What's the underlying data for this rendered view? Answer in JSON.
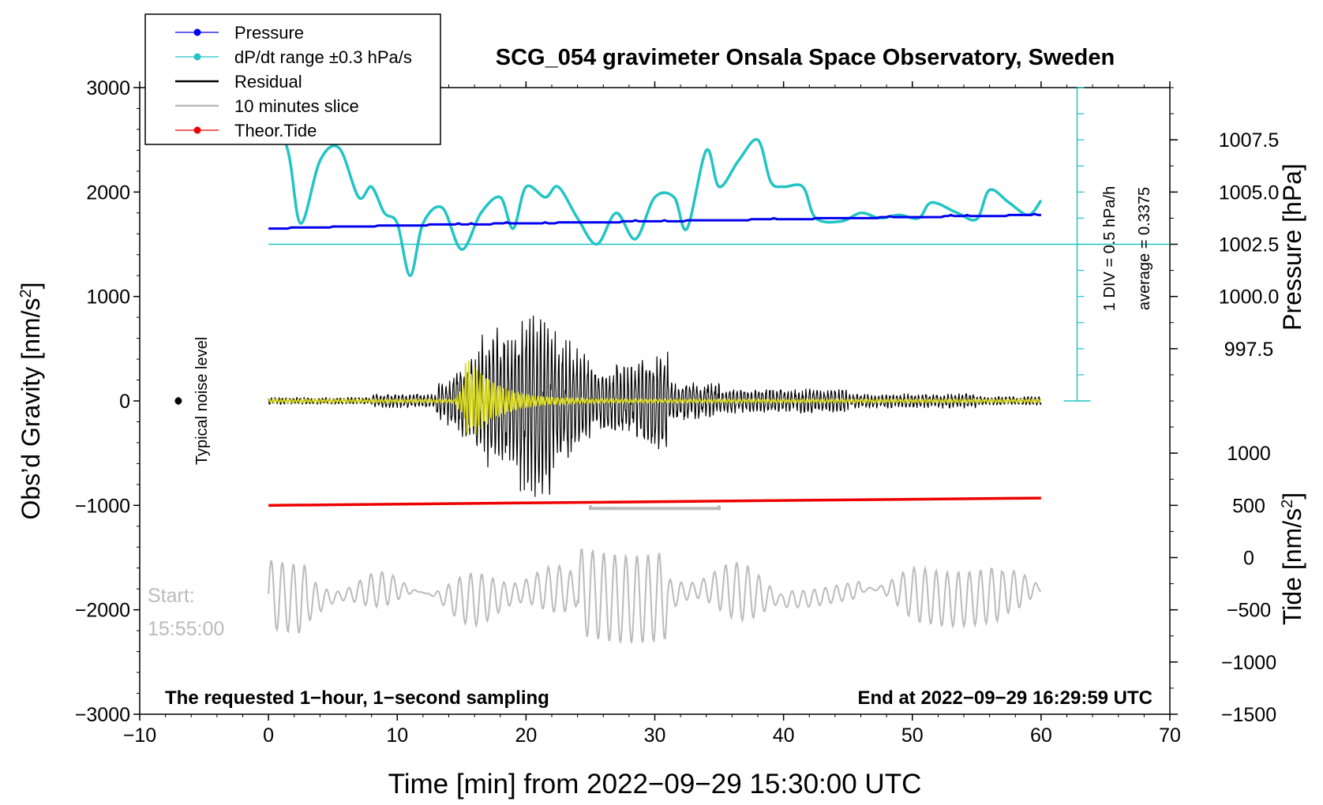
{
  "chart_data": {
    "type": "line",
    "title": "SCG_054 gravimeter Onsala Space Observatory, Sweden",
    "xlabel": "Time [min] from 2022−09−29 15:30:00 UTC",
    "ylabel_left_prefix": "Obs’d Gravity [nm/s",
    "ylabel_left_sup": "2",
    "ylabel_left_suffix": "]",
    "ylabel_right_top": "Pressure [hPa]",
    "ylabel_right_bottom_prefix": "Tide [nm/s",
    "ylabel_right_bottom_sup": "2",
    "ylabel_right_bottom_suffix": "]",
    "xlim": [
      -10,
      70
    ],
    "ylim": [
      -3000,
      3000
    ],
    "x_ticks": [
      -10,
      0,
      10,
      20,
      30,
      40,
      50,
      60,
      70
    ],
    "x_tick_labels": [
      "−10",
      "0",
      "10",
      "20",
      "30",
      "40",
      "50",
      "60",
      "70"
    ],
    "y_ticks": [
      -3000,
      -2000,
      -1000,
      0,
      1000,
      2000,
      3000
    ],
    "y_tick_labels": [
      "−3000",
      "−2000",
      "−1000",
      "0",
      "1000",
      "2000",
      "3000"
    ],
    "pressure_axis": {
      "ticks": [
        997.5,
        1000.0,
        1002.5,
        1005.0,
        1007.5
      ],
      "tick_labels": [
        "997.5",
        "1000.0",
        "1002.5",
        "1005.0",
        "1007.5"
      ],
      "gravity_equivalent": [
        500,
        1000,
        1500,
        2000,
        2500
      ]
    },
    "tide_axis": {
      "ticks": [
        -1500,
        -1000,
        -500,
        0,
        500,
        1000
      ],
      "tick_labels": [
        "−1500",
        "−1000",
        "−500",
        "0",
        "500",
        "1000"
      ],
      "gravity_equivalent": [
        -3000,
        -2500,
        -2000,
        -1500,
        -1000,
        -500
      ]
    },
    "legend": [
      {
        "label": "Pressure",
        "color": "#0000ee",
        "marker": "dot"
      },
      {
        "label": "dP/dt range ±0.3 hPa/s",
        "color": "#22c4c4",
        "marker": "dot"
      },
      {
        "label": "Residual",
        "color": "#000000",
        "marker": "line"
      },
      {
        "label": "10 minutes slice",
        "color": "#bbbbbb",
        "marker": "line"
      },
      {
        "label": "Theor.Tide",
        "color": "#ee0000",
        "marker": "dot"
      }
    ],
    "legend_position": "top-left",
    "series": [
      {
        "name": "Pressure",
        "color": "#0000ee",
        "x": [
          0,
          10,
          20,
          30,
          40,
          50,
          60
        ],
        "values": [
          1650,
          1680,
          1700,
          1720,
          1740,
          1760,
          1780
        ]
      },
      {
        "name": "dP/dt range",
        "color": "#22c4c4",
        "x": [
          1.5,
          2.5,
          4,
          5.5,
          7,
          8,
          9,
          10,
          11,
          12,
          13.5,
          15,
          16.5,
          18,
          19,
          20,
          21.5,
          22.5,
          24,
          25.5,
          27,
          28.5,
          30,
          31.5,
          32.5,
          34,
          35,
          36.5,
          38,
          39,
          40,
          41.5,
          42.5,
          44.5,
          46,
          47.5,
          49,
          50.5,
          51.5,
          53.5,
          55,
          56,
          57.5,
          59,
          60
        ],
        "values": [
          2400,
          1700,
          2300,
          2420,
          1950,
          2050,
          1800,
          1700,
          1200,
          1700,
          1850,
          1450,
          1800,
          1950,
          1650,
          2050,
          1950,
          2050,
          1750,
          1500,
          1800,
          1550,
          1950,
          1950,
          1650,
          2400,
          2050,
          2300,
          2500,
          2100,
          2050,
          2050,
          1750,
          1720,
          1800,
          1750,
          1780,
          1750,
          1900,
          1800,
          1740,
          2020,
          1900,
          1780,
          1920
        ]
      },
      {
        "name": "Residual",
        "color": "#000000",
        "values_note": "seismic residual, envelope peaks ~±1000 nm/s² near 20–21 min"
      },
      {
        "name": "10 minutes slice",
        "color": "#bbbbbb",
        "x_window": [
          25,
          35
        ],
        "values_note": "zoomed 10-minute slice of the residual drawn around −2000"
      },
      {
        "name": "Theor.Tide",
        "color": "#ee0000",
        "x": [
          0,
          60
        ],
        "values": [
          -1000,
          -930
        ]
      }
    ],
    "annotations": {
      "pressure_division": "1 DIV = 0.5 hPa/h",
      "average": "average = 0.3375",
      "noise_label": "Typical noise level",
      "start_label": "Start:",
      "start_time": "15:55:00",
      "footer_left": "The requested 1−hour, 1−second sampling",
      "footer_right": "End at 2022−09−29 16:29:59 UTC"
    }
  }
}
